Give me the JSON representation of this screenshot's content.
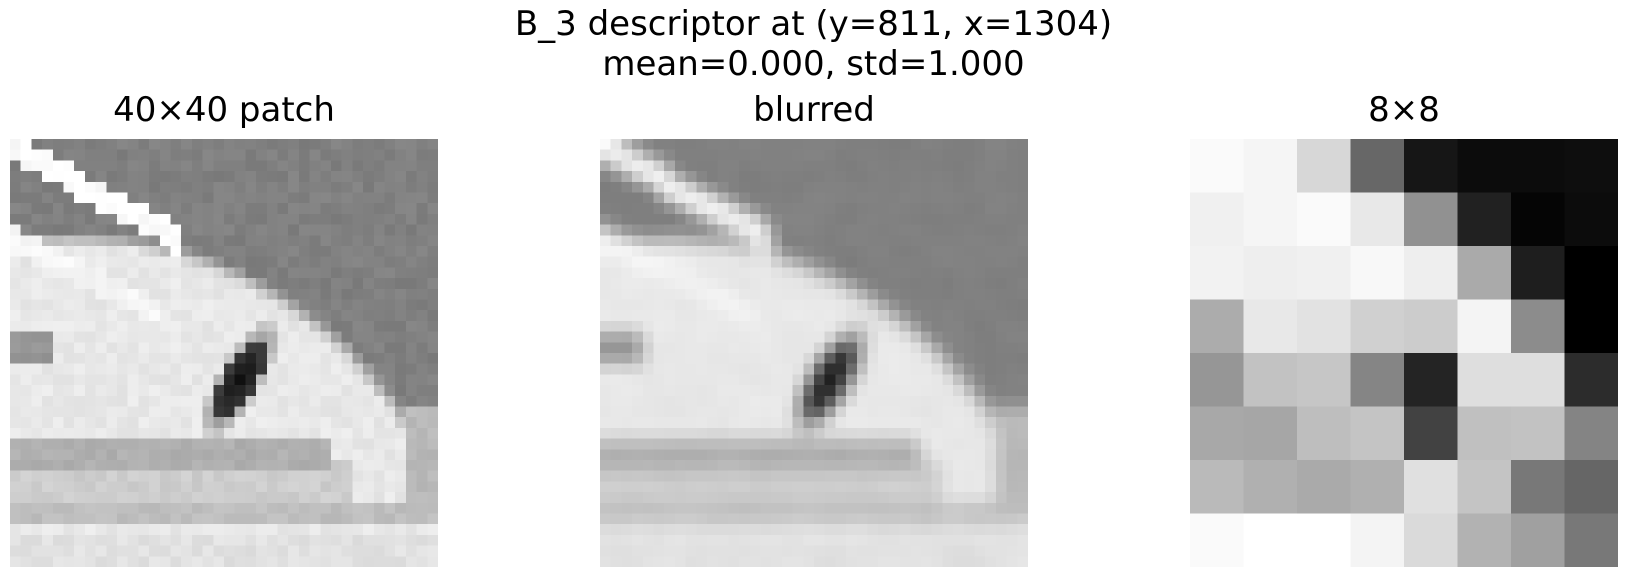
{
  "figure": {
    "suptitle_line1": "B_3 descriptor at (y=811, x=1304)",
    "suptitle_line2": "mean=0.000, std=1.000"
  },
  "panels": [
    {
      "title": "40×40 patch"
    },
    {
      "title": "blurred"
    },
    {
      "title": "8×8"
    }
  ],
  "descriptor_8x8_gray": [
    [
      250,
      245,
      215,
      103,
      22,
      12,
      12,
      14
    ],
    [
      240,
      245,
      250,
      232,
      145,
      33,
      5,
      12
    ],
    [
      242,
      238,
      240,
      248,
      238,
      170,
      30,
      0
    ],
    [
      172,
      232,
      226,
      208,
      204,
      244,
      140,
      0
    ],
    [
      150,
      194,
      198,
      133,
      36,
      222,
      222,
      44
    ],
    [
      168,
      166,
      190,
      196,
      66,
      192,
      194,
      132
    ],
    [
      186,
      176,
      170,
      176,
      224,
      196,
      120,
      102
    ],
    [
      250,
      255,
      255,
      244,
      218,
      178,
      160,
      120
    ]
  ]
}
